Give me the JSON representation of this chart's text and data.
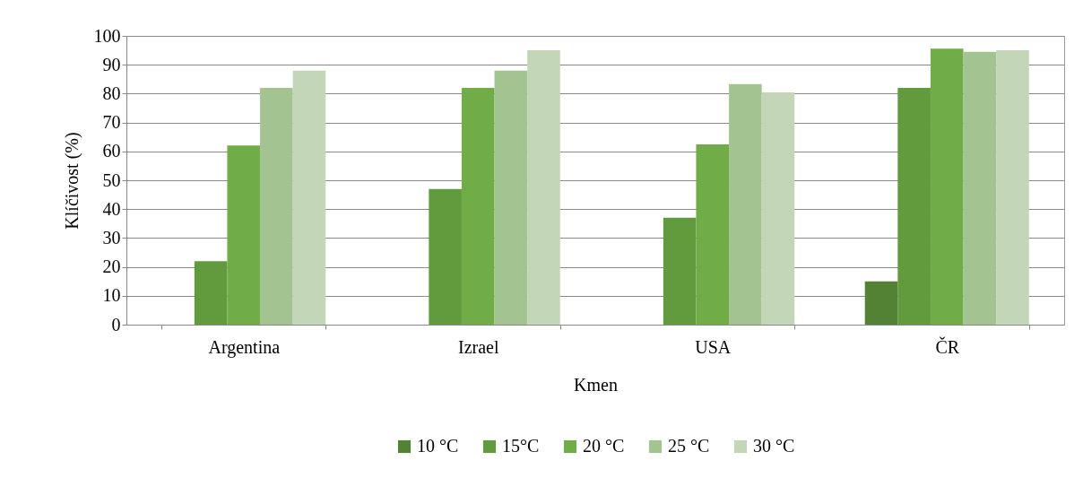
{
  "chart_data": {
    "type": "bar",
    "xlabel": "Kmen",
    "ylabel": "Klíčivost (%)",
    "categories": [
      "Argentina",
      "Izrael",
      "USA",
      "ČR"
    ],
    "series": [
      {
        "name": "10 °C",
        "color": "#548235",
        "values": [
          null,
          null,
          null,
          15
        ]
      },
      {
        "name": "15°C",
        "color": "#629a3e",
        "values": [
          22,
          47,
          37,
          82
        ]
      },
      {
        "name": "20 °C",
        "color": "#70ad47",
        "values": [
          62,
          82,
          62.4,
          95.6
        ]
      },
      {
        "name": "25 °C",
        "color": "#a3c490",
        "values": [
          82,
          88,
          83.3,
          94.5
        ]
      },
      {
        "name": "30 °C",
        "color": "#c3d7b8",
        "values": [
          88,
          95,
          80.4,
          95
        ]
      }
    ],
    "ylim": [
      0,
      100
    ],
    "yticks": [
      0,
      10,
      20,
      30,
      40,
      50,
      60,
      70,
      80,
      90,
      100
    ],
    "grid": true,
    "legend": "bottom"
  }
}
